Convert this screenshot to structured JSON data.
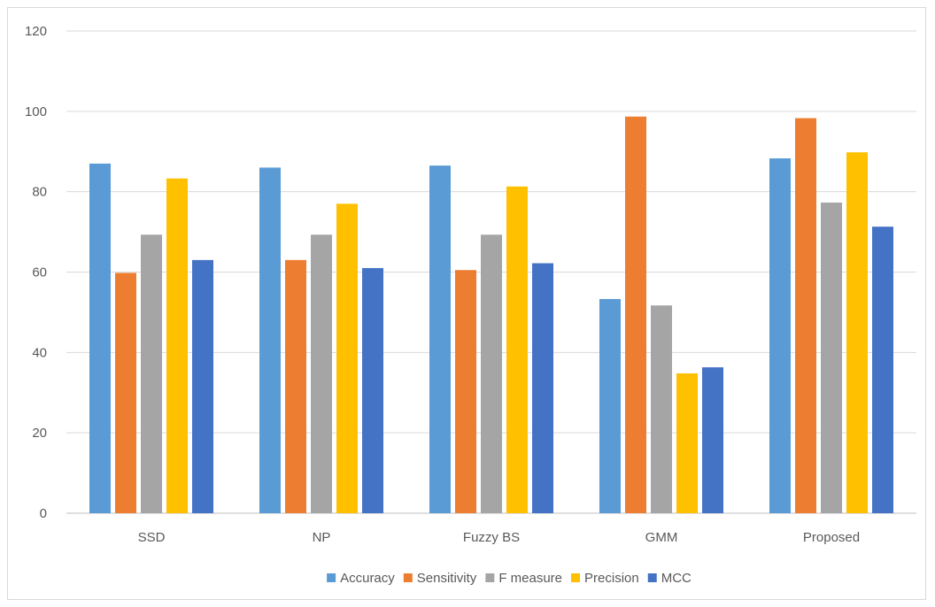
{
  "chart_data": {
    "type": "bar",
    "title": "",
    "xlabel": "",
    "ylabel": "",
    "categories": [
      "SSD",
      "NP",
      "Fuzzy BS",
      "GMM",
      "Proposed"
    ],
    "ylim": [
      0,
      120
    ],
    "yticks": [
      0,
      20,
      40,
      60,
      80,
      100,
      120
    ],
    "grid": true,
    "legend_position": "bottom",
    "series": [
      {
        "name": "Accuracy",
        "color": "#5b9bd5",
        "values": [
          87,
          86,
          86.5,
          53.3,
          88.3
        ]
      },
      {
        "name": "Sensitivity",
        "color": "#ed7d31",
        "values": [
          59.8,
          63,
          60.5,
          98.7,
          98.3
        ]
      },
      {
        "name": "F measure",
        "color": "#a5a5a5",
        "values": [
          69.3,
          69.3,
          69.3,
          51.7,
          77.3
        ]
      },
      {
        "name": "Precision",
        "color": "#ffc000",
        "values": [
          83.3,
          77,
          81.3,
          34.8,
          89.8
        ]
      },
      {
        "name": "MCC",
        "color": "#4472c4",
        "values": [
          63,
          61,
          62.2,
          36.3,
          71.3
        ]
      }
    ]
  }
}
